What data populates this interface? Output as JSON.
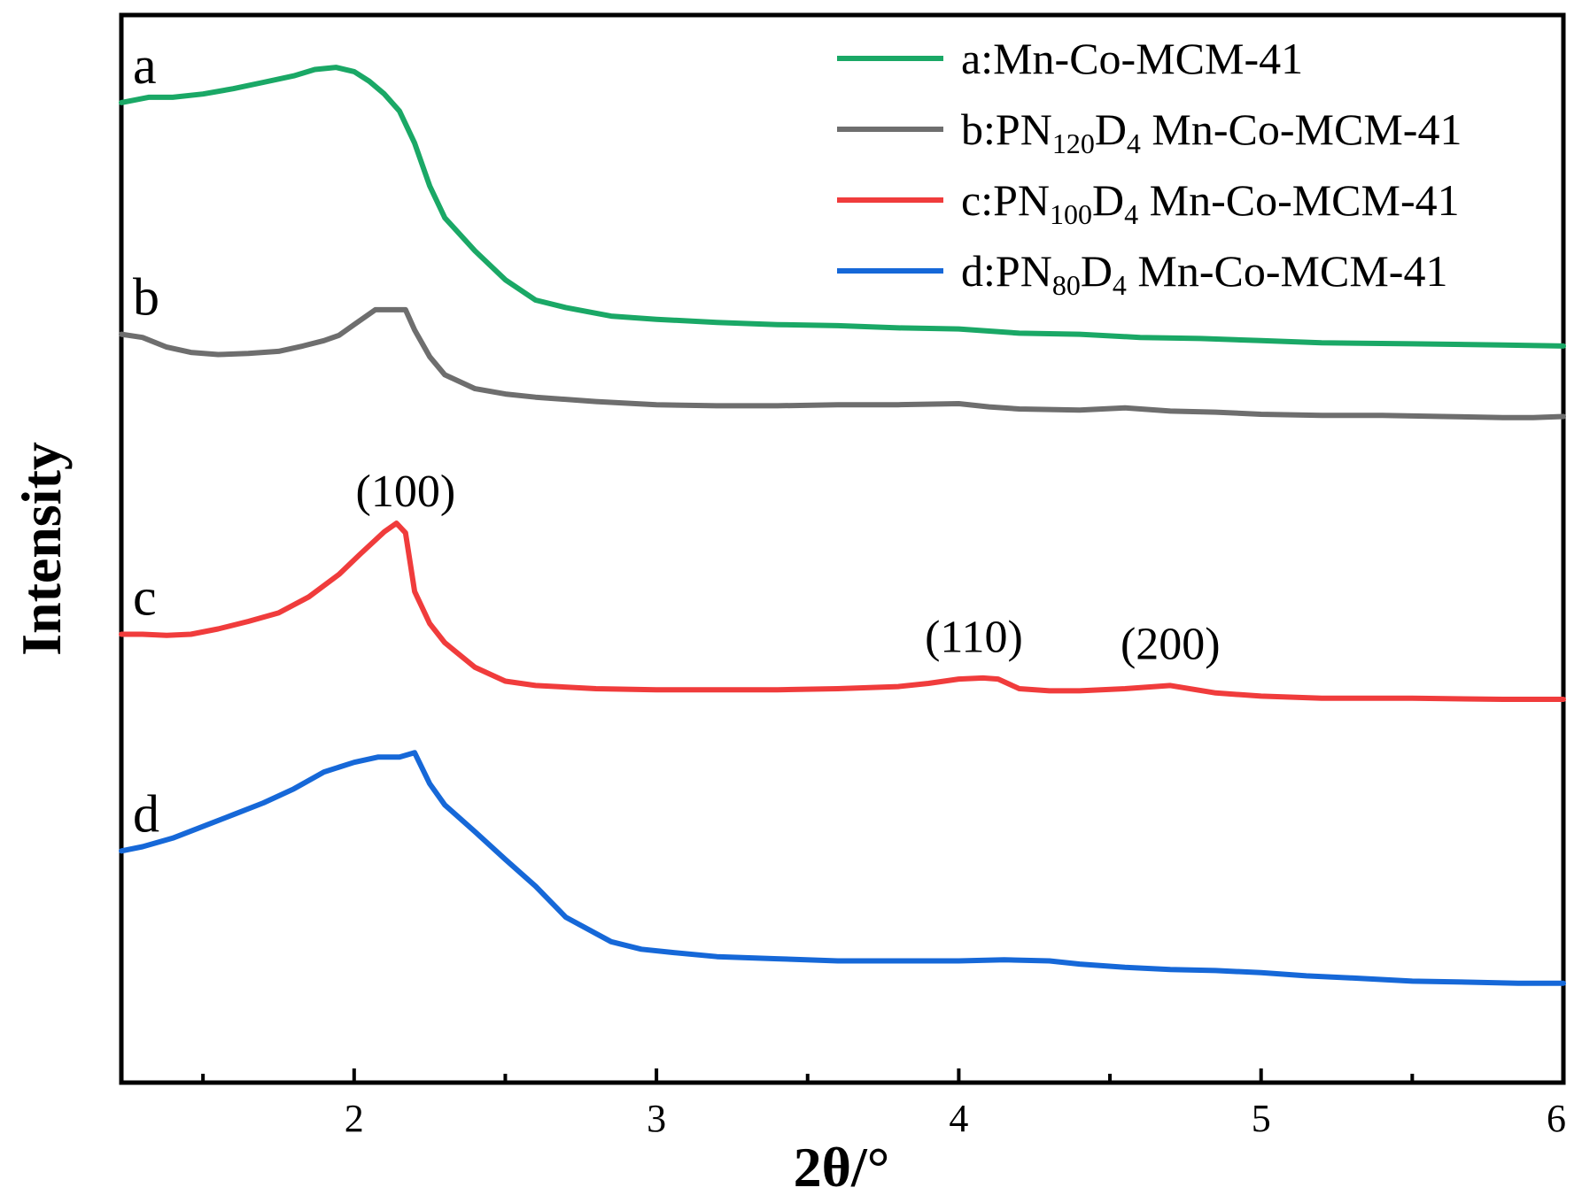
{
  "chart_data": {
    "type": "line",
    "title": "",
    "xlabel": "2θ/°",
    "ylabel": "Intensity",
    "xlim": [
      1.23,
      6.0
    ],
    "ylim": [
      0,
      100
    ],
    "x_ticks": [
      2,
      3,
      4,
      5,
      6
    ],
    "x_tick_labels": [
      "2",
      "3",
      "4",
      "5",
      "6"
    ],
    "grid": false,
    "legend_position": "top-right",
    "series": [
      {
        "id": "a",
        "label": "a",
        "legend_parts": [
          {
            "t": "a:Mn-Co-MCM-41"
          }
        ],
        "color": "#1aa866",
        "x": [
          1.23,
          1.32,
          1.4,
          1.5,
          1.6,
          1.7,
          1.8,
          1.87,
          1.94,
          2.0,
          2.05,
          2.1,
          2.15,
          2.2,
          2.25,
          2.3,
          2.4,
          2.5,
          2.6,
          2.7,
          2.85,
          3.0,
          3.2,
          3.4,
          3.6,
          3.8,
          4.0,
          4.2,
          4.4,
          4.6,
          4.8,
          5.0,
          5.2,
          5.5,
          5.8,
          6.0
        ],
        "y": [
          91.8,
          92.3,
          92.3,
          92.6,
          93.1,
          93.7,
          94.3,
          94.9,
          95.1,
          94.7,
          93.8,
          92.6,
          91.0,
          88.0,
          84.0,
          81.0,
          77.9,
          75.2,
          73.3,
          72.6,
          71.8,
          71.5,
          71.2,
          71.0,
          70.9,
          70.7,
          70.6,
          70.2,
          70.1,
          69.8,
          69.7,
          69.5,
          69.3,
          69.2,
          69.1,
          69.0
        ]
      },
      {
        "id": "b",
        "label": "b",
        "legend_parts": [
          {
            "t": "b:PN"
          },
          {
            "t": "120",
            "sub": true
          },
          {
            "t": "D"
          },
          {
            "t": "4",
            "sub": true
          },
          {
            "t": " Mn-Co-MCM-41"
          }
        ],
        "color": "#6e6e6e",
        "x": [
          1.23,
          1.3,
          1.38,
          1.46,
          1.55,
          1.65,
          1.75,
          1.83,
          1.9,
          1.95,
          2.0,
          2.07,
          2.12,
          2.17,
          2.2,
          2.25,
          2.3,
          2.4,
          2.5,
          2.6,
          2.8,
          3.0,
          3.2,
          3.4,
          3.6,
          3.8,
          4.0,
          4.1,
          4.2,
          4.4,
          4.55,
          4.7,
          4.85,
          5.0,
          5.2,
          5.4,
          5.6,
          5.8,
          5.9,
          6.0
        ],
        "y": [
          70.1,
          69.8,
          68.9,
          68.4,
          68.2,
          68.3,
          68.5,
          69.0,
          69.5,
          70.0,
          71.0,
          72.4,
          72.4,
          72.4,
          70.5,
          68.0,
          66.3,
          65.0,
          64.5,
          64.2,
          63.8,
          63.5,
          63.4,
          63.4,
          63.5,
          63.5,
          63.6,
          63.3,
          63.1,
          63.0,
          63.2,
          62.9,
          62.8,
          62.6,
          62.5,
          62.5,
          62.4,
          62.3,
          62.3,
          62.4
        ]
      },
      {
        "id": "c",
        "label": "c",
        "legend_parts": [
          {
            "t": "c:PN"
          },
          {
            "t": "100",
            "sub": true
          },
          {
            "t": "D"
          },
          {
            "t": "4",
            "sub": true
          },
          {
            "t": " Mn-Co-MCM-41"
          }
        ],
        "color": "#f03c3c",
        "x": [
          1.23,
          1.3,
          1.38,
          1.46,
          1.55,
          1.65,
          1.75,
          1.85,
          1.95,
          2.02,
          2.1,
          2.14,
          2.17,
          2.2,
          2.25,
          2.3,
          2.4,
          2.5,
          2.6,
          2.8,
          3.0,
          3.2,
          3.4,
          3.6,
          3.8,
          3.9,
          4.0,
          4.08,
          4.13,
          4.2,
          4.3,
          4.4,
          4.55,
          4.7,
          4.85,
          5.0,
          5.2,
          5.5,
          5.8,
          6.0
        ],
        "y": [
          42.0,
          42.0,
          41.9,
          42.0,
          42.5,
          43.2,
          44.0,
          45.5,
          47.6,
          49.5,
          51.6,
          52.4,
          51.5,
          46.0,
          43.0,
          41.2,
          38.9,
          37.6,
          37.2,
          36.9,
          36.8,
          36.8,
          36.8,
          36.9,
          37.1,
          37.4,
          37.8,
          37.9,
          37.8,
          36.9,
          36.7,
          36.7,
          36.9,
          37.2,
          36.5,
          36.2,
          36.0,
          36.0,
          35.9,
          35.9
        ]
      },
      {
        "id": "d",
        "label": "d",
        "legend_parts": [
          {
            "t": "d:PN"
          },
          {
            "t": "80",
            "sub": true
          },
          {
            "t": "D"
          },
          {
            "t": "4",
            "sub": true
          },
          {
            "t": " Mn-Co-MCM-41"
          }
        ],
        "color": "#1668d8",
        "x": [
          1.23,
          1.3,
          1.4,
          1.5,
          1.6,
          1.7,
          1.8,
          1.9,
          2.0,
          2.08,
          2.15,
          2.2,
          2.25,
          2.3,
          2.4,
          2.5,
          2.6,
          2.7,
          2.85,
          2.95,
          3.05,
          3.2,
          3.4,
          3.6,
          3.8,
          4.0,
          4.15,
          4.3,
          4.4,
          4.55,
          4.7,
          4.85,
          5.0,
          5.15,
          5.3,
          5.5,
          5.7,
          5.85,
          6.0
        ],
        "y": [
          21.7,
          22.1,
          22.9,
          24.0,
          25.1,
          26.2,
          27.5,
          29.1,
          30.0,
          30.5,
          30.5,
          30.9,
          28.0,
          26.0,
          23.5,
          20.9,
          18.4,
          15.5,
          13.2,
          12.5,
          12.2,
          11.8,
          11.6,
          11.4,
          11.4,
          11.4,
          11.5,
          11.4,
          11.1,
          10.8,
          10.6,
          10.5,
          10.3,
          10.0,
          9.8,
          9.5,
          9.4,
          9.3,
          9.3
        ]
      }
    ],
    "curve_labels": [
      {
        "series": "a",
        "text": "a"
      },
      {
        "series": "b",
        "text": "b"
      },
      {
        "series": "c",
        "text": "c"
      },
      {
        "series": "d",
        "text": "d"
      }
    ],
    "annotations": [
      {
        "text": "(100)",
        "series": "c",
        "x": 2.17
      },
      {
        "text": "(110)",
        "series": "c",
        "x": 4.05
      },
      {
        "text": "(200)",
        "series": "c",
        "x": 4.7
      }
    ]
  }
}
